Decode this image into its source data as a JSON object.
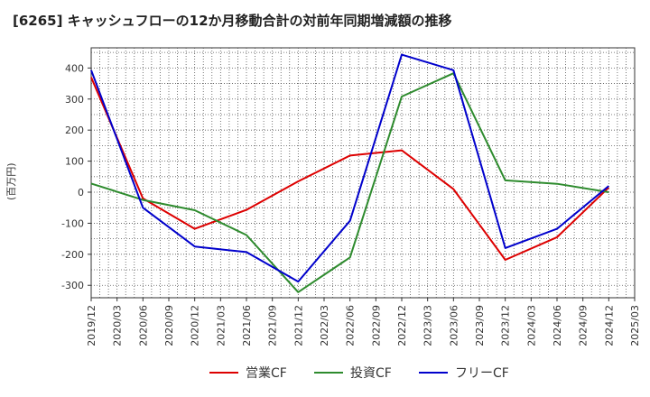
{
  "chart_data": {
    "type": "line",
    "title": "[6265]  キャッシュフローの12か月移動合計の対前年同期増減額の推移",
    "ylabel": "(百万円)",
    "xlabel": "",
    "ylim": [
      -340,
      465
    ],
    "yticks": [
      -300,
      -200,
      -100,
      0,
      100,
      200,
      300,
      400
    ],
    "categories": [
      "2019/12",
      "2020/03",
      "2020/06",
      "2020/09",
      "2020/12",
      "2021/03",
      "2021/06",
      "2021/09",
      "2021/12",
      "2022/03",
      "2022/06",
      "2022/09",
      "2022/12",
      "2023/03",
      "2023/06",
      "2023/09",
      "2023/12",
      "2024/03",
      "2024/06",
      "2024/09",
      "2024/12",
      "2025/03"
    ],
    "grid": true,
    "legend_position": "bottom",
    "series": [
      {
        "name": "営業CF",
        "color": "#dd0000",
        "values": [
          370,
          null,
          -20,
          null,
          -118,
          null,
          -57,
          null,
          35,
          null,
          118,
          null,
          135,
          null,
          10,
          null,
          -218,
          null,
          -145,
          null,
          15,
          null
        ]
      },
      {
        "name": "投資CF",
        "color": "#2e8b2e",
        "values": [
          28,
          null,
          -25,
          null,
          -58,
          null,
          -138,
          null,
          -322,
          null,
          -210,
          null,
          308,
          null,
          383,
          null,
          38,
          null,
          27,
          null,
          0,
          null
        ]
      },
      {
        "name": "フリーCF",
        "color": "#0000cc",
        "values": [
          393,
          null,
          -50,
          null,
          -175,
          null,
          -193,
          null,
          -288,
          null,
          -92,
          null,
          443,
          null,
          393,
          null,
          -180,
          null,
          -118,
          null,
          20,
          null
        ]
      }
    ]
  }
}
